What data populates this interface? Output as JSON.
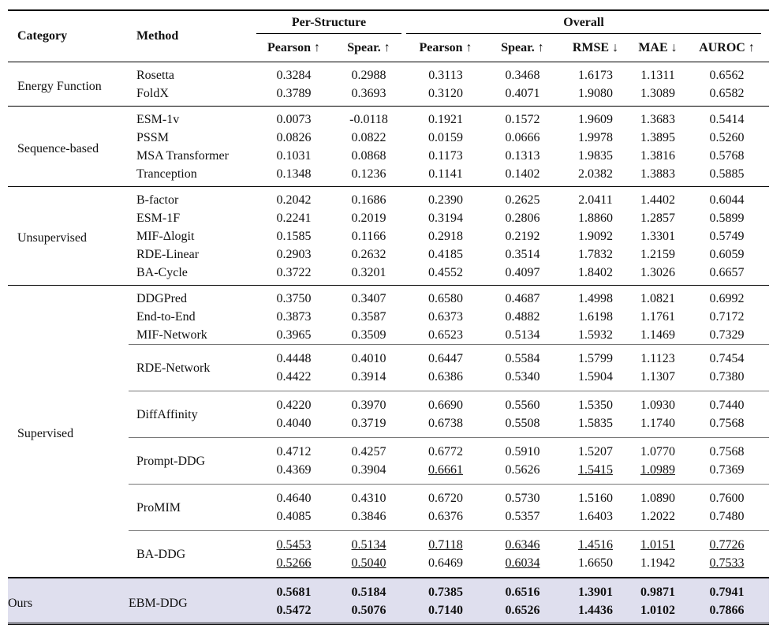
{
  "header": {
    "category": "Category",
    "method": "Method",
    "per_structure": "Per-Structure",
    "overall": "Overall",
    "columns": [
      "Pearson ↑",
      "Spear. ↑",
      "Pearson ↑",
      "Spear. ↑",
      "RMSE ↓",
      "MAE ↓",
      "AUROC ↑"
    ]
  },
  "groups": [
    {
      "category": "Energy Function",
      "methods": [
        {
          "name": "Rosetta",
          "rows": [
            {
              "values": [
                "0.3284",
                "0.2988",
                "0.3113",
                "0.3468",
                "1.6173",
                "1.1311",
                "0.6562"
              ]
            }
          ]
        },
        {
          "name": "FoldX",
          "rows": [
            {
              "values": [
                "0.3789",
                "0.3693",
                "0.3120",
                "0.4071",
                "1.9080",
                "1.3089",
                "0.6582"
              ]
            }
          ]
        }
      ]
    },
    {
      "category": "Sequence-based",
      "methods": [
        {
          "name": "ESM-1v",
          "rows": [
            {
              "values": [
                "0.0073",
                "-0.0118",
                "0.1921",
                "0.1572",
                "1.9609",
                "1.3683",
                "0.5414"
              ]
            }
          ]
        },
        {
          "name": "PSSM",
          "rows": [
            {
              "values": [
                "0.0826",
                "0.0822",
                "0.0159",
                "0.0666",
                "1.9978",
                "1.3895",
                "0.5260"
              ]
            }
          ]
        },
        {
          "name": "MSA Transformer",
          "rows": [
            {
              "values": [
                "0.1031",
                "0.0868",
                "0.1173",
                "0.1313",
                "1.9835",
                "1.3816",
                "0.5768"
              ]
            }
          ]
        },
        {
          "name": "Tranception",
          "rows": [
            {
              "values": [
                "0.1348",
                "0.1236",
                "0.1141",
                "0.1402",
                "2.0382",
                "1.3883",
                "0.5885"
              ]
            }
          ]
        }
      ]
    },
    {
      "category": "Unsupervised",
      "methods": [
        {
          "name": "B-factor",
          "rows": [
            {
              "values": [
                "0.2042",
                "0.1686",
                "0.2390",
                "0.2625",
                "2.0411",
                "1.4402",
                "0.6044"
              ]
            }
          ]
        },
        {
          "name": "ESM-1F",
          "rows": [
            {
              "values": [
                "0.2241",
                "0.2019",
                "0.3194",
                "0.2806",
                "1.8860",
                "1.2857",
                "0.5899"
              ]
            }
          ]
        },
        {
          "name": "MIF-Δlogit",
          "rows": [
            {
              "values": [
                "0.1585",
                "0.1166",
                "0.2918",
                "0.2192",
                "1.9092",
                "1.3301",
                "0.5749"
              ]
            }
          ]
        },
        {
          "name": "RDE-Linear",
          "rows": [
            {
              "values": [
                "0.2903",
                "0.2632",
                "0.4185",
                "0.3514",
                "1.7832",
                "1.2159",
                "0.6059"
              ]
            }
          ]
        },
        {
          "name": "BA-Cycle",
          "rows": [
            {
              "values": [
                "0.3722",
                "0.3201",
                "0.4552",
                "0.4097",
                "1.8402",
                "1.3026",
                "0.6657"
              ]
            }
          ]
        }
      ]
    },
    {
      "category": "Supervised",
      "methods": [
        {
          "name": "DDGPred",
          "rows": [
            {
              "values": [
                "0.3750",
                "0.3407",
                "0.6580",
                "0.4687",
                "1.4998",
                "1.0821",
                "0.6992"
              ]
            }
          ]
        },
        {
          "name": "End-to-End",
          "rows": [
            {
              "values": [
                "0.3873",
                "0.3587",
                "0.6373",
                "0.4882",
                "1.6198",
                "1.1761",
                "0.7172"
              ]
            }
          ]
        },
        {
          "name": "MIF-Network",
          "rows": [
            {
              "values": [
                "0.3965",
                "0.3509",
                "0.6523",
                "0.5134",
                "1.5932",
                "1.1469",
                "0.7329"
              ]
            }
          ]
        },
        {
          "name": "RDE-Network",
          "rows": [
            {
              "values": [
                "0.4448",
                "0.4010",
                "0.6447",
                "0.5584",
                "1.5799",
                "1.1123",
                "0.7454"
              ]
            },
            {
              "values": [
                "0.4422",
                "0.3914",
                "0.6386",
                "0.5340",
                "1.5904",
                "1.1307",
                "0.7380"
              ]
            }
          ]
        },
        {
          "name": "DiffAffinity",
          "rows": [
            {
              "values": [
                "0.4220",
                "0.3970",
                "0.6690",
                "0.5560",
                "1.5350",
                "1.0930",
                "0.7440"
              ]
            },
            {
              "values": [
                "0.4040",
                "0.3719",
                "0.6738",
                "0.5508",
                "1.5835",
                "1.1740",
                "0.7568"
              ]
            }
          ]
        },
        {
          "name": "Prompt-DDG",
          "rows": [
            {
              "values": [
                "0.4712",
                "0.4257",
                "0.6772",
                "0.5910",
                "1.5207",
                "1.0770",
                "0.7568"
              ]
            },
            {
              "values": [
                "0.4369",
                "0.3904",
                "0.6661",
                "0.5626",
                "1.5415",
                "1.0989",
                "0.7369"
              ],
              "underline": [
                2,
                4,
                5
              ]
            }
          ]
        },
        {
          "name": "ProMIM",
          "rows": [
            {
              "values": [
                "0.4640",
                "0.4310",
                "0.6720",
                "0.5730",
                "1.5160",
                "1.0890",
                "0.7600"
              ]
            },
            {
              "values": [
                "0.4085",
                "0.3846",
                "0.6376",
                "0.5357",
                "1.6403",
                "1.2022",
                "0.7480"
              ]
            }
          ]
        },
        {
          "name": "BA-DDG",
          "rows": [
            {
              "values": [
                "0.5453",
                "0.5134",
                "0.7118",
                "0.6346",
                "1.4516",
                "1.0151",
                "0.7726"
              ],
              "underline": [
                0,
                1,
                2,
                3,
                4,
                5,
                6
              ]
            },
            {
              "values": [
                "0.5266",
                "0.5040",
                "0.6469",
                "0.6034",
                "1.6650",
                "1.1942",
                "0.7533"
              ],
              "underline": [
                0,
                1,
                3,
                6
              ]
            }
          ]
        }
      ]
    },
    {
      "category": "Ours",
      "bold": true,
      "highlight": "#dfdfee",
      "methods": [
        {
          "name": "EBM-DDG",
          "rows": [
            {
              "values": [
                "0.5681",
                "0.5184",
                "0.7385",
                "0.6516",
                "1.3901",
                "0.9871",
                "0.7941"
              ]
            },
            {
              "values": [
                "0.5472",
                "0.5076",
                "0.7140",
                "0.6526",
                "1.4436",
                "1.0102",
                "0.7866"
              ]
            }
          ]
        }
      ]
    }
  ]
}
